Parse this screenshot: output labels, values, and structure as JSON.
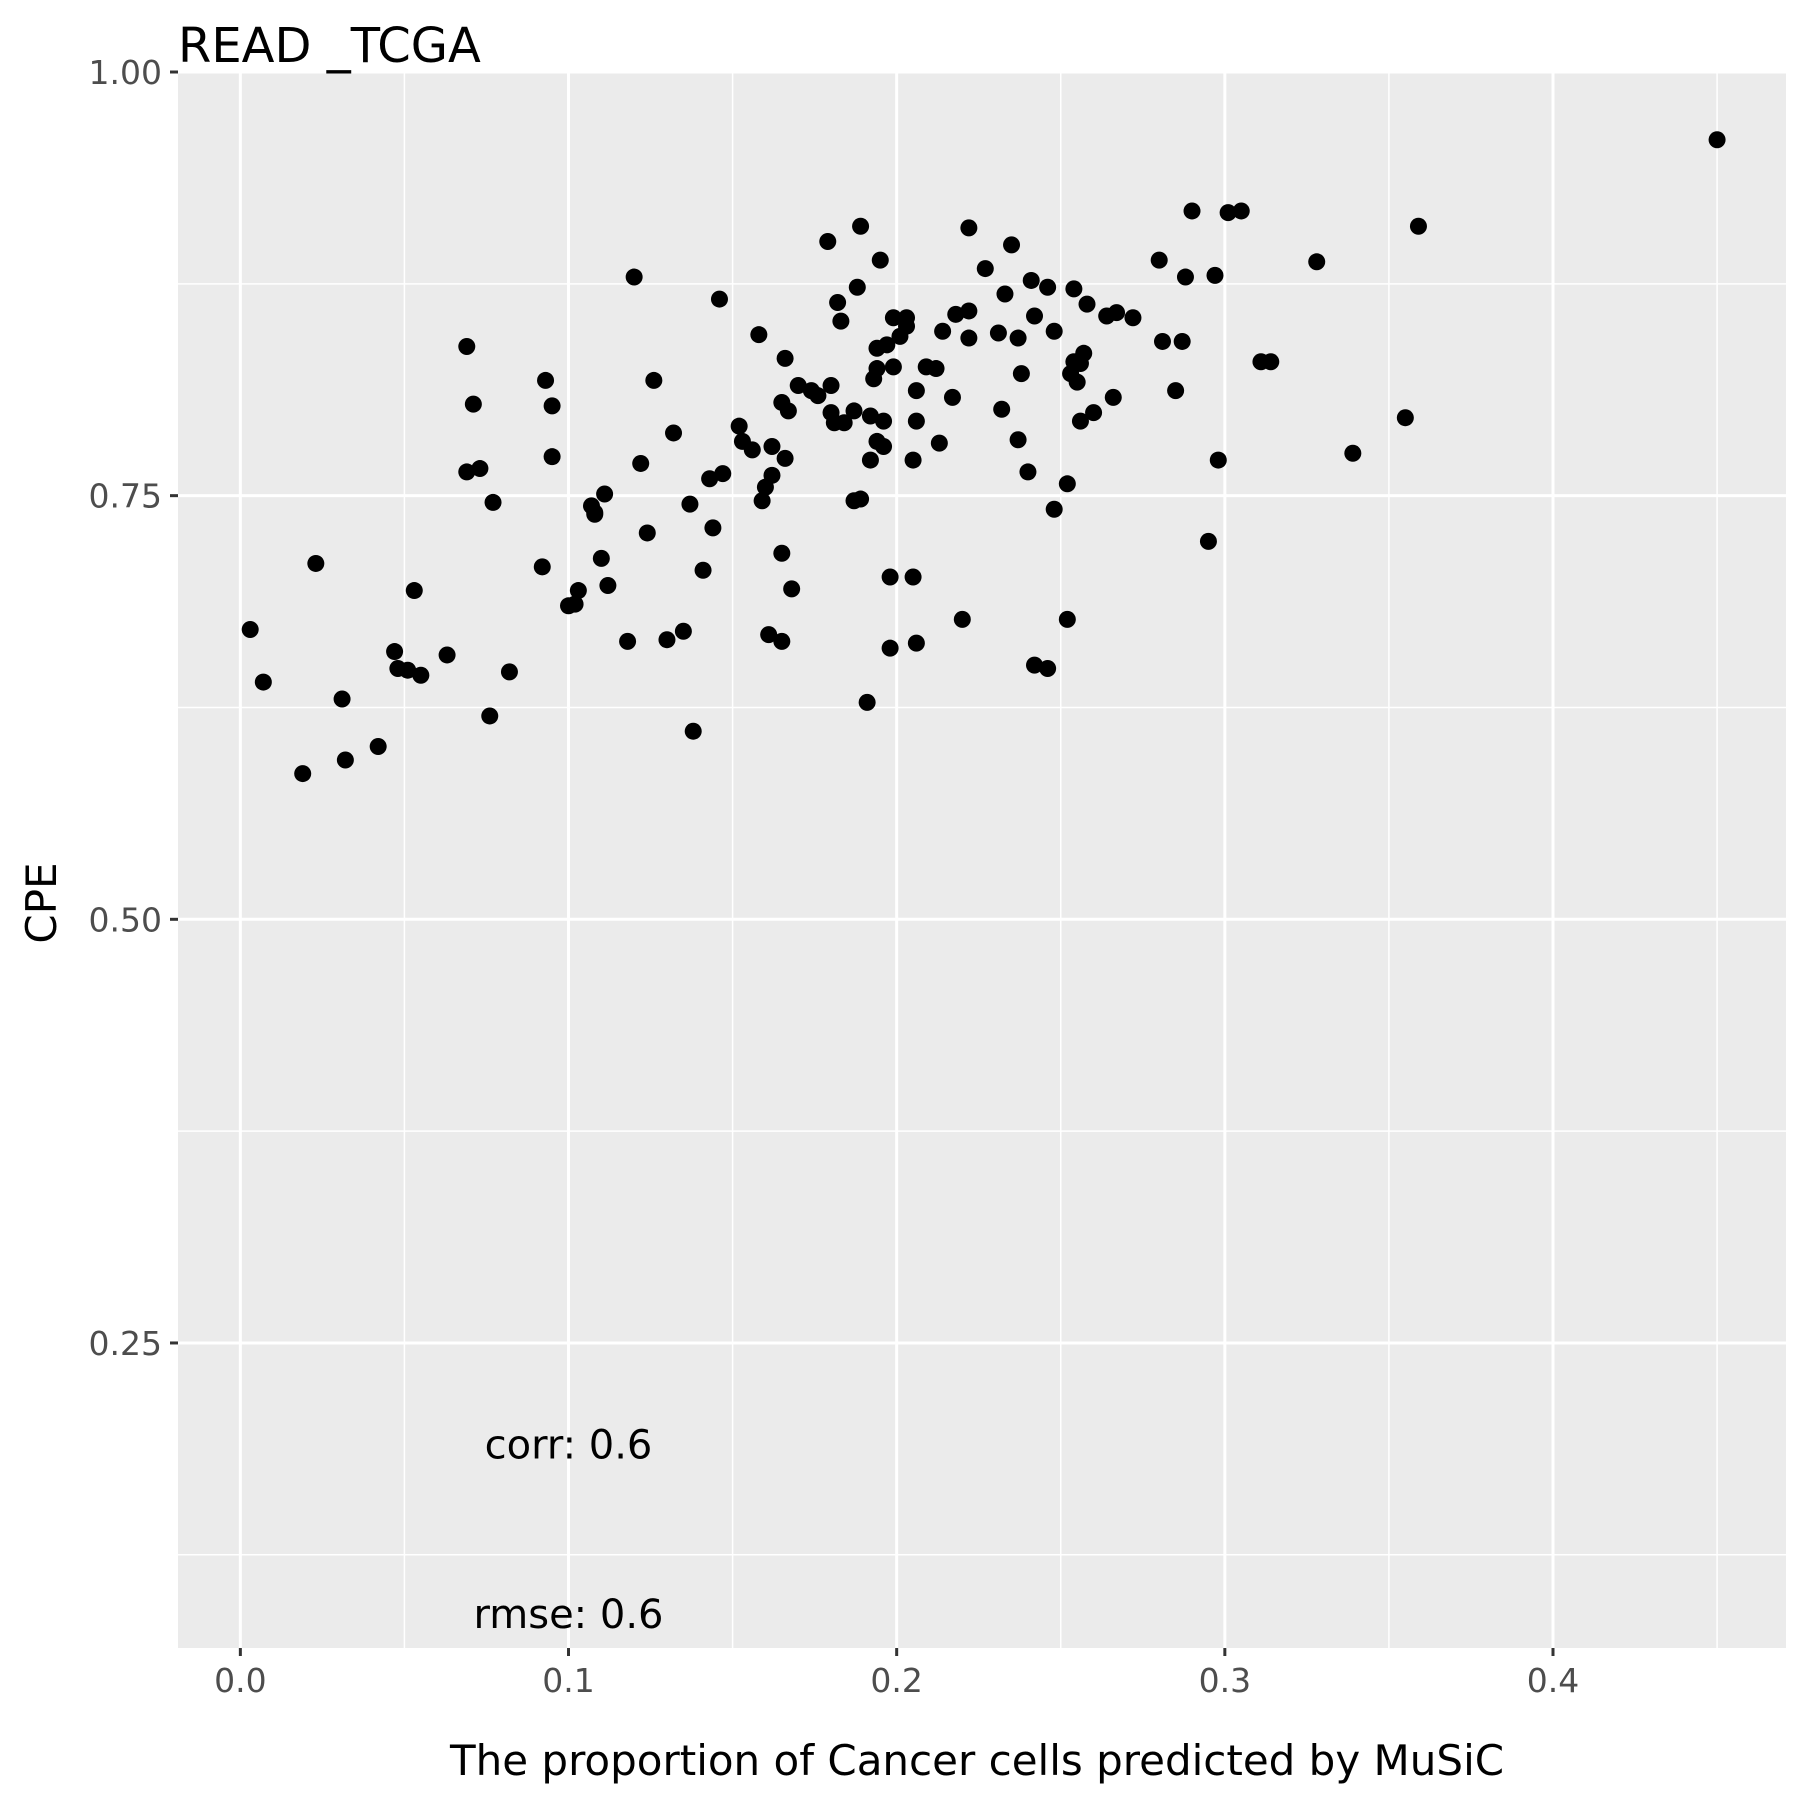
{
  "chart_data": {
    "type": "scatter",
    "title": "READ _TCGA",
    "xlabel": "The proportion of Cancer cells predicted by MuSiC",
    "ylabel": "CPE",
    "xlim": [
      -0.019,
      0.471
    ],
    "ylim": [
      0.07,
      1.0
    ],
    "x_ticks": [
      0.0,
      0.1,
      0.2,
      0.3,
      0.4
    ],
    "x_tick_labels": [
      "0.0",
      "0.1",
      "0.2",
      "0.3",
      "0.4"
    ],
    "y_ticks": [
      0.25,
      0.5,
      0.75,
      1.0
    ],
    "y_tick_labels": [
      "0.25",
      "0.50",
      "0.75",
      "1.00"
    ],
    "grid": true,
    "annotations": [
      {
        "text": "corr: 0.6",
        "x": 0.1,
        "y": 0.19
      },
      {
        "text": "rmse: 0.6",
        "x": 0.1,
        "y": 0.09
      }
    ],
    "colors": {
      "panel": "#EBEBEB",
      "grid": "#FFFFFF",
      "point": "#000000",
      "tick_text": "#4D4D4D",
      "axis_tick": "#333333"
    },
    "points": [
      [
        0.003,
        0.671
      ],
      [
        0.007,
        0.64
      ],
      [
        0.019,
        0.586
      ],
      [
        0.023,
        0.71
      ],
      [
        0.031,
        0.63
      ],
      [
        0.032,
        0.594
      ],
      [
        0.042,
        0.602
      ],
      [
        0.047,
        0.658
      ],
      [
        0.048,
        0.648
      ],
      [
        0.051,
        0.647
      ],
      [
        0.053,
        0.694
      ],
      [
        0.055,
        0.644
      ],
      [
        0.063,
        0.656
      ],
      [
        0.069,
        0.838
      ],
      [
        0.069,
        0.764
      ],
      [
        0.071,
        0.804
      ],
      [
        0.073,
        0.766
      ],
      [
        0.076,
        0.62
      ],
      [
        0.077,
        0.746
      ],
      [
        0.082,
        0.646
      ],
      [
        0.092,
        0.708
      ],
      [
        0.093,
        0.818
      ],
      [
        0.095,
        0.773
      ],
      [
        0.095,
        0.803
      ],
      [
        0.1,
        0.685
      ],
      [
        0.102,
        0.686
      ],
      [
        0.103,
        0.694
      ],
      [
        0.107,
        0.744
      ],
      [
        0.108,
        0.74
      ],
      [
        0.108,
        0.739
      ],
      [
        0.11,
        0.713
      ],
      [
        0.111,
        0.751
      ],
      [
        0.112,
        0.697
      ],
      [
        0.118,
        0.664
      ],
      [
        0.12,
        0.879
      ],
      [
        0.122,
        0.769
      ],
      [
        0.124,
        0.728
      ],
      [
        0.126,
        0.818
      ],
      [
        0.13,
        0.665
      ],
      [
        0.132,
        0.787
      ],
      [
        0.135,
        0.67
      ],
      [
        0.137,
        0.745
      ],
      [
        0.138,
        0.611
      ],
      [
        0.141,
        0.706
      ],
      [
        0.143,
        0.76
      ],
      [
        0.144,
        0.731
      ],
      [
        0.146,
        0.866
      ],
      [
        0.147,
        0.763
      ],
      [
        0.152,
        0.791
      ],
      [
        0.153,
        0.782
      ],
      [
        0.156,
        0.777
      ],
      [
        0.158,
        0.845
      ],
      [
        0.159,
        0.747
      ],
      [
        0.16,
        0.755
      ],
      [
        0.161,
        0.668
      ],
      [
        0.162,
        0.779
      ],
      [
        0.162,
        0.762
      ],
      [
        0.165,
        0.805
      ],
      [
        0.165,
        0.716
      ],
      [
        0.165,
        0.664
      ],
      [
        0.166,
        0.831
      ],
      [
        0.166,
        0.772
      ],
      [
        0.167,
        0.8
      ],
      [
        0.168,
        0.695
      ],
      [
        0.17,
        0.815
      ],
      [
        0.174,
        0.812
      ],
      [
        0.176,
        0.809
      ],
      [
        0.179,
        0.9
      ],
      [
        0.18,
        0.815
      ],
      [
        0.18,
        0.799
      ],
      [
        0.181,
        0.793
      ],
      [
        0.182,
        0.864
      ],
      [
        0.183,
        0.853
      ],
      [
        0.184,
        0.793
      ],
      [
        0.187,
        0.747
      ],
      [
        0.187,
        0.8
      ],
      [
        0.188,
        0.873
      ],
      [
        0.189,
        0.748
      ],
      [
        0.189,
        0.909
      ],
      [
        0.191,
        0.628
      ],
      [
        0.192,
        0.771
      ],
      [
        0.192,
        0.797
      ],
      [
        0.193,
        0.819
      ],
      [
        0.194,
        0.837
      ],
      [
        0.194,
        0.782
      ],
      [
        0.194,
        0.825
      ],
      [
        0.195,
        0.889
      ],
      [
        0.196,
        0.779
      ],
      [
        0.196,
        0.794
      ],
      [
        0.197,
        0.839
      ],
      [
        0.198,
        0.702
      ],
      [
        0.198,
        0.66
      ],
      [
        0.199,
        0.855
      ],
      [
        0.199,
        0.826
      ],
      [
        0.201,
        0.844
      ],
      [
        0.203,
        0.855
      ],
      [
        0.203,
        0.85
      ],
      [
        0.205,
        0.702
      ],
      [
        0.205,
        0.771
      ],
      [
        0.206,
        0.794
      ],
      [
        0.206,
        0.812
      ],
      [
        0.206,
        0.663
      ],
      [
        0.209,
        0.826
      ],
      [
        0.212,
        0.825
      ],
      [
        0.213,
        0.781
      ],
      [
        0.214,
        0.847
      ],
      [
        0.217,
        0.808
      ],
      [
        0.218,
        0.857
      ],
      [
        0.22,
        0.677
      ],
      [
        0.222,
        0.908
      ],
      [
        0.222,
        0.859
      ],
      [
        0.222,
        0.843
      ],
      [
        0.227,
        0.884
      ],
      [
        0.231,
        0.846
      ],
      [
        0.232,
        0.801
      ],
      [
        0.233,
        0.869
      ],
      [
        0.235,
        0.898
      ],
      [
        0.237,
        0.843
      ],
      [
        0.237,
        0.783
      ],
      [
        0.238,
        0.822
      ],
      [
        0.24,
        0.764
      ],
      [
        0.241,
        0.877
      ],
      [
        0.242,
        0.65
      ],
      [
        0.242,
        0.856
      ],
      [
        0.246,
        0.873
      ],
      [
        0.246,
        0.648
      ],
      [
        0.248,
        0.847
      ],
      [
        0.248,
        0.742
      ],
      [
        0.252,
        0.677
      ],
      [
        0.252,
        0.757
      ],
      [
        0.253,
        0.822
      ],
      [
        0.254,
        0.829
      ],
      [
        0.254,
        0.872
      ],
      [
        0.255,
        0.817
      ],
      [
        0.256,
        0.828
      ],
      [
        0.256,
        0.794
      ],
      [
        0.257,
        0.834
      ],
      [
        0.258,
        0.863
      ],
      [
        0.26,
        0.799
      ],
      [
        0.264,
        0.856
      ],
      [
        0.266,
        0.808
      ],
      [
        0.267,
        0.858
      ],
      [
        0.272,
        0.855
      ],
      [
        0.28,
        0.889
      ],
      [
        0.281,
        0.841
      ],
      [
        0.285,
        0.812
      ],
      [
        0.287,
        0.841
      ],
      [
        0.288,
        0.879
      ],
      [
        0.29,
        0.918
      ],
      [
        0.295,
        0.723
      ],
      [
        0.297,
        0.88
      ],
      [
        0.298,
        0.771
      ],
      [
        0.301,
        0.917
      ],
      [
        0.305,
        0.918
      ],
      [
        0.311,
        0.829
      ],
      [
        0.314,
        0.829
      ],
      [
        0.328,
        0.888
      ],
      [
        0.339,
        0.775
      ],
      [
        0.355,
        0.796
      ],
      [
        0.359,
        0.909
      ],
      [
        0.45,
        0.96
      ]
    ]
  }
}
